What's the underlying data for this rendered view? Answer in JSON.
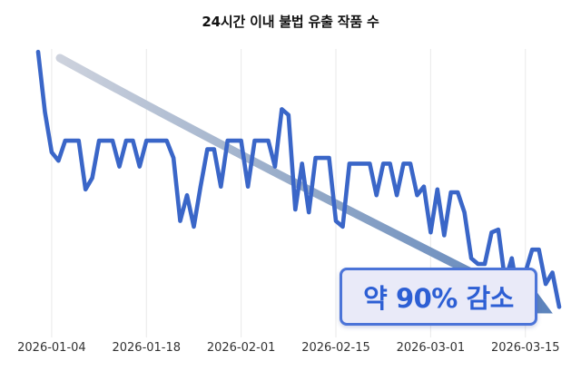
{
  "title": "24시간 이내 불법 유출 작품 수",
  "annotation": {
    "label": "약 90% 감소"
  },
  "chart_data": {
    "type": "line",
    "title": "24시간 이내 불법 유출 작품 수",
    "x_start_date": "2026-01-02",
    "x_interval_days": 1,
    "x_tick_labels": [
      "2026-01-04",
      "2026-01-18",
      "2026-02-01",
      "2026-02-15",
      "2026-03-01",
      "2026-03-15"
    ],
    "x_tick_indices": [
      2,
      16,
      30,
      44,
      58,
      72
    ],
    "values": [
      99,
      78,
      64,
      61,
      68,
      68,
      68,
      51,
      55,
      68,
      68,
      68,
      59,
      68,
      68,
      59,
      68,
      68,
      68,
      68,
      62,
      40,
      49,
      38,
      52,
      65,
      65,
      52,
      68,
      68,
      68,
      52,
      68,
      68,
      68,
      59,
      79,
      77,
      44,
      60,
      43,
      62,
      62,
      62,
      40,
      38,
      60,
      60,
      60,
      60,
      49,
      60,
      60,
      49,
      60,
      60,
      49,
      52,
      36,
      51,
      35,
      50,
      50,
      43,
      27,
      25,
      25,
      36,
      37,
      19,
      27,
      13,
      22,
      30,
      30,
      18,
      22,
      10
    ],
    "ylim": [
      0,
      100
    ],
    "y_axis_visible": false,
    "grid": "vertical-only",
    "grid_color": "#e9e9e9",
    "line_color": "#3a66c8",
    "trend_arrow": {
      "direction": "down",
      "gradient": [
        "#cdd2dd",
        "#8fa6c6",
        "#5d84bc"
      ]
    },
    "annotation": {
      "text": "약 90% 감소",
      "text_color": "#2d5fd4",
      "border_color": "#4b74d8",
      "fill_color": "#e9eaf8"
    },
    "legend": null
  }
}
